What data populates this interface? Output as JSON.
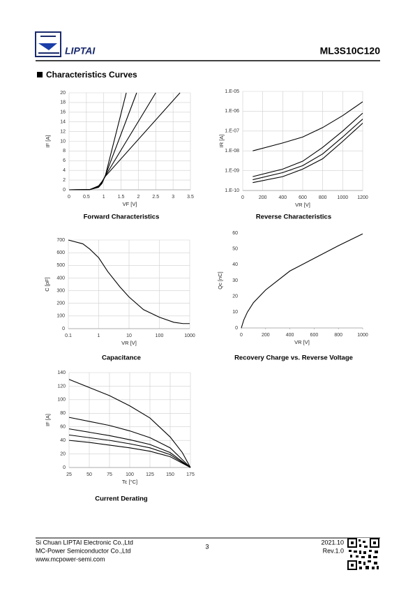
{
  "header": {
    "brand": "LIPTAI",
    "part_number": "ML3S10C120"
  },
  "section_title": "Characteristics Curves",
  "chart_data": [
    {
      "type": "line",
      "title": "Forward Characteristics",
      "x_label": "VF  [V]",
      "y_label": "IF  [A]",
      "xlim": [
        0,
        3.5
      ],
      "xticks": [
        0,
        0.5,
        1,
        1.5,
        2,
        2.5,
        3,
        3.5
      ],
      "ylim": [
        0,
        20
      ],
      "yticks": [
        0,
        2,
        4,
        6,
        8,
        10,
        12,
        14,
        16,
        18,
        20
      ],
      "grid": true,
      "series": [
        {
          "color": "#000000",
          "x": [
            0,
            0.6,
            0.85,
            0.95,
            1.05,
            1.65
          ],
          "values": [
            0,
            0.05,
            0.5,
            1.3,
            3,
            20
          ]
        },
        {
          "color": "#000000",
          "x": [
            0,
            0.6,
            0.85,
            0.95,
            1.05,
            1.95
          ],
          "values": [
            0,
            0.05,
            0.6,
            1.5,
            3,
            20
          ]
        },
        {
          "color": "#000000",
          "x": [
            0,
            0.6,
            0.85,
            0.95,
            1.05,
            2.5
          ],
          "values": [
            0,
            0.05,
            0.7,
            1.6,
            2.9,
            20
          ]
        },
        {
          "color": "#000000",
          "x": [
            0,
            0.6,
            0.85,
            0.95,
            1.05,
            3.2
          ],
          "values": [
            0,
            0.05,
            0.8,
            1.7,
            2.8,
            20
          ]
        }
      ]
    },
    {
      "type": "line",
      "title": "Reverse Characteristics",
      "x_label": "VR  [V]",
      "y_label": "IR  [A]",
      "log_y": true,
      "xlim": [
        0,
        1200
      ],
      "xticks": [
        0,
        200,
        400,
        600,
        800,
        1000,
        1200
      ],
      "ylim": [
        1e-10,
        1e-05
      ],
      "yticks": [
        {
          "value": 1e-10,
          "label": "1.E-10"
        },
        {
          "value": 1e-09,
          "label": "1.E-09"
        },
        {
          "value": 1e-08,
          "label": "1.E-08"
        },
        {
          "value": 1e-07,
          "label": "1.E-07"
        },
        {
          "value": 1e-06,
          "label": "1.E-06"
        },
        {
          "value": 1e-05,
          "label": "1.E-05"
        }
      ],
      "grid": true,
      "series": [
        {
          "color": "#000000",
          "x": [
            100,
            400,
            600,
            800,
            1000,
            1200
          ],
          "values": [
            1e-08,
            2.5e-08,
            5e-08,
            1.5e-07,
            6e-07,
            3e-06
          ]
        },
        {
          "color": "#000000",
          "x": [
            100,
            400,
            600,
            800,
            1000,
            1200
          ],
          "values": [
            5e-10,
            1.2e-09,
            3e-09,
            1.5e-08,
            1e-07,
            8e-07
          ]
        },
        {
          "color": "#000000",
          "x": [
            100,
            400,
            600,
            800,
            1000,
            1200
          ],
          "values": [
            3.5e-10,
            8e-10,
            1.8e-09,
            7e-09,
            5e-08,
            4e-07
          ]
        },
        {
          "color": "#000000",
          "x": [
            100,
            400,
            600,
            800,
            1000,
            1200
          ],
          "values": [
            2.5e-10,
            5e-10,
            1.2e-09,
            4e-09,
            3e-08,
            2.5e-07
          ]
        }
      ]
    },
    {
      "type": "line",
      "title": "Capacitance",
      "x_label": "VR  [V]",
      "y_label": "C  [pF]",
      "log_x": true,
      "xlim": [
        0.1,
        1000
      ],
      "xticks": [
        0.1,
        1,
        10,
        100,
        1000
      ],
      "ylim": [
        0,
        700
      ],
      "yticks": [
        0,
        100,
        200,
        300,
        400,
        500,
        600,
        700
      ],
      "grid": true,
      "series": [
        {
          "color": "#000000",
          "x": [
            0.1,
            0.3,
            0.5,
            1,
            2,
            5,
            10,
            30,
            100,
            300,
            600,
            1000
          ],
          "values": [
            700,
            670,
            630,
            560,
            450,
            330,
            250,
            150,
            90,
            50,
            40,
            40
          ]
        }
      ]
    },
    {
      "type": "line",
      "title": "Recovery Charge vs. Reverse Voltage",
      "x_label": "VR  [V]",
      "y_label": "Qc  [nC]",
      "xlim": [
        0,
        1000
      ],
      "xticks": [
        0,
        200,
        400,
        600,
        800,
        1000
      ],
      "ylim": [
        0,
        60
      ],
      "yticks": [
        0,
        10,
        20,
        30,
        40,
        50,
        60
      ],
      "grid": false,
      "series": [
        {
          "color": "#000000",
          "x": [
            0,
            20,
            50,
            100,
            200,
            400,
            600,
            800,
            1000
          ],
          "values": [
            0,
            5,
            10,
            16,
            24,
            36,
            44,
            52,
            59.5
          ]
        }
      ]
    },
    {
      "type": "line",
      "title": "Current Derating",
      "x_label": "Tc  [°C]",
      "y_label": "IF  [A]",
      "xlim": [
        25,
        175
      ],
      "xticks": [
        25,
        50,
        75,
        100,
        125,
        150,
        175
      ],
      "ylim": [
        0,
        140
      ],
      "yticks": [
        0,
        20,
        40,
        60,
        80,
        100,
        120,
        140
      ],
      "grid": true,
      "series": [
        {
          "color": "#000000",
          "x": [
            25,
            50,
            75,
            100,
            125,
            150,
            165,
            175
          ],
          "values": [
            130,
            118,
            106,
            91,
            73,
            45,
            22,
            0
          ]
        },
        {
          "color": "#000000",
          "x": [
            25,
            50,
            75,
            100,
            125,
            150,
            175
          ],
          "values": [
            74,
            68,
            62,
            54,
            44,
            29,
            0
          ]
        },
        {
          "color": "#000000",
          "x": [
            25,
            50,
            75,
            100,
            125,
            150,
            175
          ],
          "values": [
            57,
            52,
            47,
            41,
            34,
            22,
            0
          ]
        },
        {
          "color": "#000000",
          "x": [
            25,
            50,
            75,
            100,
            125,
            150,
            175
          ],
          "values": [
            48,
            44,
            40,
            35,
            29,
            19,
            0
          ]
        },
        {
          "color": "#000000",
          "x": [
            25,
            50,
            75,
            100,
            125,
            150,
            175
          ],
          "values": [
            40,
            37,
            33,
            29,
            24,
            16,
            0
          ]
        }
      ]
    }
  ],
  "footer": {
    "company_1": "Si Chuan LIPTAI Electronic Co.,Ltd",
    "company_2": "MC-Power Semiconductor Co.,Ltd",
    "website": "www.mcpower-semi.com",
    "page_number": "3",
    "date": "2021.10",
    "revision": "Rev.1.0"
  }
}
